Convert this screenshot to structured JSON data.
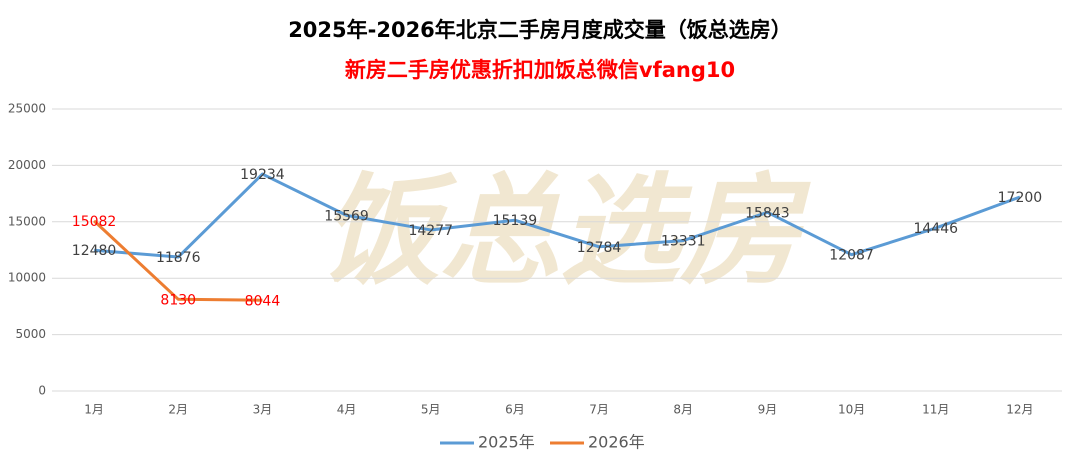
{
  "chart_data": {
    "type": "line",
    "title": "2025年-2026年北京二手房月度成交量（饭总选房）",
    "subtitle": "新房二手房优惠折扣加饭总微信vfang10",
    "watermark": "饭总选房",
    "categories": [
      "1月",
      "2月",
      "3月",
      "4月",
      "5月",
      "6月",
      "7月",
      "8月",
      "9月",
      "10月",
      "11月",
      "12月"
    ],
    "series": [
      {
        "name": "2025年",
        "color": "#5b9bd5",
        "label_color": "#404040",
        "values": [
          12480,
          11876,
          19234,
          15569,
          14277,
          15139,
          12784,
          13331,
          15843,
          12087,
          14446,
          17200
        ]
      },
      {
        "name": "2026年",
        "color": "#ed7d31",
        "label_color": "#ff0000",
        "values": [
          15082,
          8130,
          8044,
          null,
          null,
          null,
          null,
          null,
          null,
          null,
          null,
          null
        ]
      }
    ],
    "ylim": [
      0,
      25000
    ],
    "yticks": [
      0,
      5000,
      10000,
      15000,
      20000,
      25000
    ],
    "grid": true,
    "legend": "bottom",
    "data_labels": true
  }
}
